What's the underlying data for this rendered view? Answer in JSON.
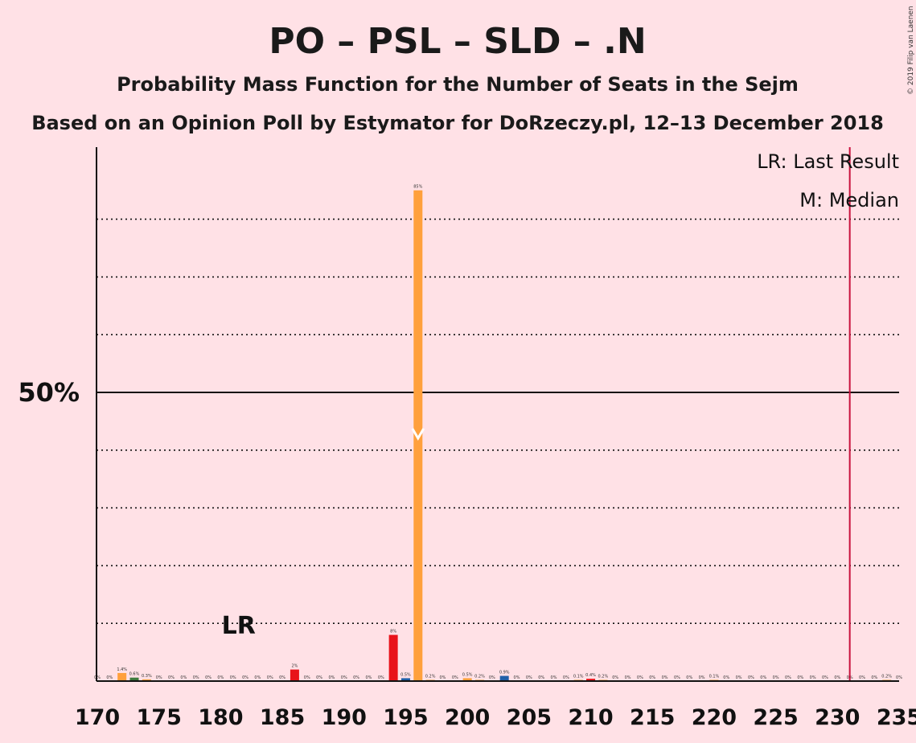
{
  "title": "PO – PSL – SLD – .N",
  "subtitle": "Probability Mass Function for the Number of Seats in the Sejm",
  "subtitle2": "Based on an Opinion Poll by Estymator for DoRzeczy.pl, 12–13 December 2018",
  "copyright": "© 2019 Filip van Laenen",
  "legend": {
    "lr": "LR: Last Result",
    "median": "M: Median"
  },
  "lr_marker": "LR",
  "chart_data": {
    "type": "bar",
    "xlim": [
      170,
      235
    ],
    "ylim": [
      0,
      92
    ],
    "x_ticks": [
      170,
      175,
      180,
      185,
      190,
      195,
      200,
      205,
      210,
      215,
      220,
      225,
      230,
      235
    ],
    "y_label_tick": {
      "value": 50,
      "label": "50%"
    },
    "dotted_gridlines": [
      10,
      20,
      30,
      40,
      60,
      70,
      80
    ],
    "last_result": 181,
    "majority_line": 231,
    "median": 196,
    "colors": {
      "default": "#FFA03C",
      "red": "#E8131A",
      "green": "#3C7A3C",
      "blue": "#1E5FA8",
      "majority": "#C8103C",
      "median_marker": "#FFFFFF"
    },
    "bars": [
      {
        "x": 170,
        "value": 0,
        "label": "0%",
        "color": "default"
      },
      {
        "x": 171,
        "value": 0,
        "label": "0%",
        "color": "default"
      },
      {
        "x": 172,
        "value": 1.4,
        "label": "1.4%",
        "color": "default"
      },
      {
        "x": 173,
        "value": 0.6,
        "label": "0.6%",
        "color": "green"
      },
      {
        "x": 174,
        "value": 0.3,
        "label": "0.3%",
        "color": "default"
      },
      {
        "x": 175,
        "value": 0,
        "label": "0%",
        "color": "default"
      },
      {
        "x": 176,
        "value": 0,
        "label": "0%",
        "color": "default"
      },
      {
        "x": 177,
        "value": 0,
        "label": "0%",
        "color": "default"
      },
      {
        "x": 178,
        "value": 0,
        "label": "0%",
        "color": "default"
      },
      {
        "x": 179,
        "value": 0,
        "label": "0%",
        "color": "default"
      },
      {
        "x": 180,
        "value": 0,
        "label": "0%",
        "color": "default"
      },
      {
        "x": 181,
        "value": 0,
        "label": "0%",
        "color": "default"
      },
      {
        "x": 182,
        "value": 0,
        "label": "0%",
        "color": "default"
      },
      {
        "x": 183,
        "value": 0,
        "label": "0%",
        "color": "default"
      },
      {
        "x": 184,
        "value": 0,
        "label": "0%",
        "color": "default"
      },
      {
        "x": 185,
        "value": 0,
        "label": "0%",
        "color": "default"
      },
      {
        "x": 186,
        "value": 2,
        "label": "2%",
        "color": "red"
      },
      {
        "x": 187,
        "value": 0,
        "label": "0%",
        "color": "default"
      },
      {
        "x": 188,
        "value": 0,
        "label": "0%",
        "color": "default"
      },
      {
        "x": 189,
        "value": 0,
        "label": "0%",
        "color": "default"
      },
      {
        "x": 190,
        "value": 0,
        "label": "0%",
        "color": "default"
      },
      {
        "x": 191,
        "value": 0,
        "label": "0%",
        "color": "default"
      },
      {
        "x": 192,
        "value": 0,
        "label": "0%",
        "color": "default"
      },
      {
        "x": 193,
        "value": 0,
        "label": "0%",
        "color": "default"
      },
      {
        "x": 194,
        "value": 8,
        "label": "8%",
        "color": "red"
      },
      {
        "x": 195,
        "value": 0.5,
        "label": "0.5%",
        "color": "blue"
      },
      {
        "x": 196,
        "value": 85,
        "label": "85%",
        "color": "default"
      },
      {
        "x": 197,
        "value": 0.2,
        "label": "0.2%",
        "color": "default"
      },
      {
        "x": 198,
        "value": 0,
        "label": "0%",
        "color": "default"
      },
      {
        "x": 199,
        "value": 0,
        "label": "0%",
        "color": "default"
      },
      {
        "x": 200,
        "value": 0.5,
        "label": "0.5%",
        "color": "default"
      },
      {
        "x": 201,
        "value": 0.2,
        "label": "0.2%",
        "color": "default"
      },
      {
        "x": 202,
        "value": 0,
        "label": "0%",
        "color": "default"
      },
      {
        "x": 203,
        "value": 0.9,
        "label": "0.9%",
        "color": "blue"
      },
      {
        "x": 204,
        "value": 0,
        "label": "0%",
        "color": "default"
      },
      {
        "x": 205,
        "value": 0,
        "label": "0%",
        "color": "default"
      },
      {
        "x": 206,
        "value": 0,
        "label": "0%",
        "color": "default"
      },
      {
        "x": 207,
        "value": 0,
        "label": "0%",
        "color": "default"
      },
      {
        "x": 208,
        "value": 0,
        "label": "0%",
        "color": "default"
      },
      {
        "x": 209,
        "value": 0.1,
        "label": "0.1%",
        "color": "default"
      },
      {
        "x": 210,
        "value": 0.4,
        "label": "0.4%",
        "color": "red"
      },
      {
        "x": 211,
        "value": 0.2,
        "label": "0.2%",
        "color": "default"
      },
      {
        "x": 212,
        "value": 0,
        "label": "0%",
        "color": "default"
      },
      {
        "x": 213,
        "value": 0,
        "label": "0%",
        "color": "default"
      },
      {
        "x": 214,
        "value": 0,
        "label": "0%",
        "color": "default"
      },
      {
        "x": 215,
        "value": 0,
        "label": "0%",
        "color": "default"
      },
      {
        "x": 216,
        "value": 0,
        "label": "0%",
        "color": "default"
      },
      {
        "x": 217,
        "value": 0,
        "label": "0%",
        "color": "default"
      },
      {
        "x": 218,
        "value": 0,
        "label": "0%",
        "color": "default"
      },
      {
        "x": 219,
        "value": 0,
        "label": "0%",
        "color": "default"
      },
      {
        "x": 220,
        "value": 0.1,
        "label": "0.1%",
        "color": "default"
      },
      {
        "x": 221,
        "value": 0,
        "label": "0%",
        "color": "default"
      },
      {
        "x": 222,
        "value": 0,
        "label": "0%",
        "color": "default"
      },
      {
        "x": 223,
        "value": 0,
        "label": "0%",
        "color": "default"
      },
      {
        "x": 224,
        "value": 0,
        "label": "0%",
        "color": "default"
      },
      {
        "x": 225,
        "value": 0,
        "label": "0%",
        "color": "default"
      },
      {
        "x": 226,
        "value": 0,
        "label": "0%",
        "color": "default"
      },
      {
        "x": 227,
        "value": 0,
        "label": "0%",
        "color": "default"
      },
      {
        "x": 228,
        "value": 0,
        "label": "0%",
        "color": "default"
      },
      {
        "x": 229,
        "value": 0,
        "label": "0%",
        "color": "default"
      },
      {
        "x": 230,
        "value": 0,
        "label": "0%",
        "color": "default"
      },
      {
        "x": 231,
        "value": 0,
        "label": "0%",
        "color": "default"
      },
      {
        "x": 232,
        "value": 0,
        "label": "0%",
        "color": "default"
      },
      {
        "x": 233,
        "value": 0,
        "label": "0%",
        "color": "default"
      },
      {
        "x": 234,
        "value": 0.2,
        "label": "0.2%",
        "color": "default"
      },
      {
        "x": 235,
        "value": 0,
        "label": "0%",
        "color": "default"
      }
    ]
  }
}
